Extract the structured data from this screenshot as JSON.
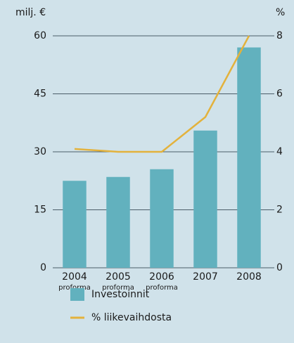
{
  "chart_data": {
    "type": "bar-line",
    "y_label": "milj. €",
    "y2_label": "%",
    "categories": [
      "2004",
      "2005",
      "2006",
      "2007",
      "2008"
    ],
    "sublabels": [
      "proforma",
      "proforma",
      "proforma",
      null,
      null
    ],
    "series": [
      {
        "name": "Investoinnit",
        "type": "bar",
        "color": "#62b1be",
        "values": [
          22.5,
          23.5,
          25.5,
          35.5,
          57
        ]
      },
      {
        "name": "% liikevaihdosta",
        "type": "line",
        "axis": "y2",
        "color": "#e3b23c",
        "values": [
          4.1,
          4.0,
          4.0,
          5.2,
          8.0
        ]
      }
    ],
    "ylim": [
      0,
      60
    ],
    "yticks": [
      0,
      15,
      30,
      45,
      60
    ],
    "y2lim": [
      0,
      8
    ],
    "y2ticks": [
      0,
      2,
      4,
      6,
      8
    ],
    "grid": true
  }
}
